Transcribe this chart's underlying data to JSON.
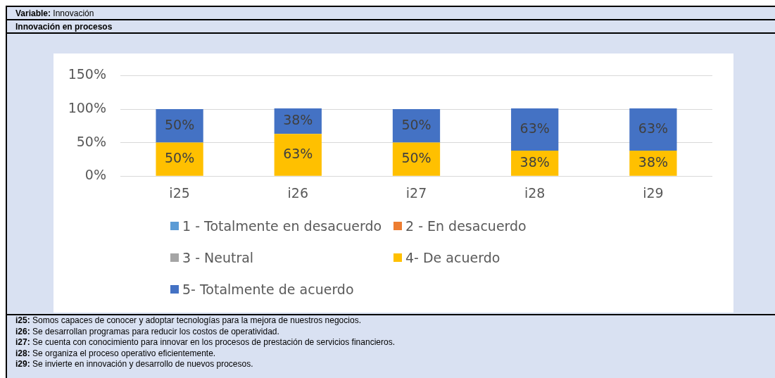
{
  "chart_data": {
    "type": "bar",
    "title": "Variable: Innovación",
    "subtitle": "Innovación en procesos",
    "categories": [
      "i25",
      "i26",
      "i27",
      "i28",
      "i29"
    ],
    "stacked": true,
    "ylim": [
      0,
      150
    ],
    "yticks": [
      {
        "value": 0,
        "label": "0%"
      },
      {
        "value": 50,
        "label": "50%"
      },
      {
        "value": 100,
        "label": "100%"
      },
      {
        "value": 150,
        "label": "150%"
      }
    ],
    "grid": "y",
    "legend": "bottom",
    "series": [
      {
        "name": "1 - Totalmente en desacuerdo",
        "color": "#5b9bd5",
        "values": [
          null,
          null,
          null,
          null,
          null
        ]
      },
      {
        "name": "2 - En desacuerdo",
        "color": "#ed7d31",
        "values": [
          null,
          null,
          null,
          null,
          null
        ]
      },
      {
        "name": "3 - Neutral",
        "color": "#a5a5a5",
        "values": [
          null,
          null,
          null,
          null,
          null
        ]
      },
      {
        "name": "4- De acuerdo",
        "color": "#ffc000",
        "values": [
          50,
          63,
          50,
          38,
          38
        ],
        "value_labels": [
          "50%",
          "63%",
          "50%",
          "38%",
          "38%"
        ]
      },
      {
        "name": "5- Totalmente de acuerdo",
        "color": "#4472c4",
        "values": [
          50,
          38,
          50,
          63,
          63
        ],
        "value_labels": [
          "50%",
          "38%",
          "50%",
          "63%",
          "63%"
        ]
      }
    ],
    "annotations": [
      "i25: Somos capaces de conocer y adoptar tecnologías para la mejora de nuestros negocios.",
      "i26: Se desarrollan programas para reducir los costos de operatividad.",
      "i27: Se cuenta con conocimiento para innovar en los procesos de prestación de servicios financieros.",
      "i28: Se organiza el proceso operativo eficientemente.",
      "i29: Se invierte en innovación y desarrollo de nuevos procesos."
    ]
  }
}
